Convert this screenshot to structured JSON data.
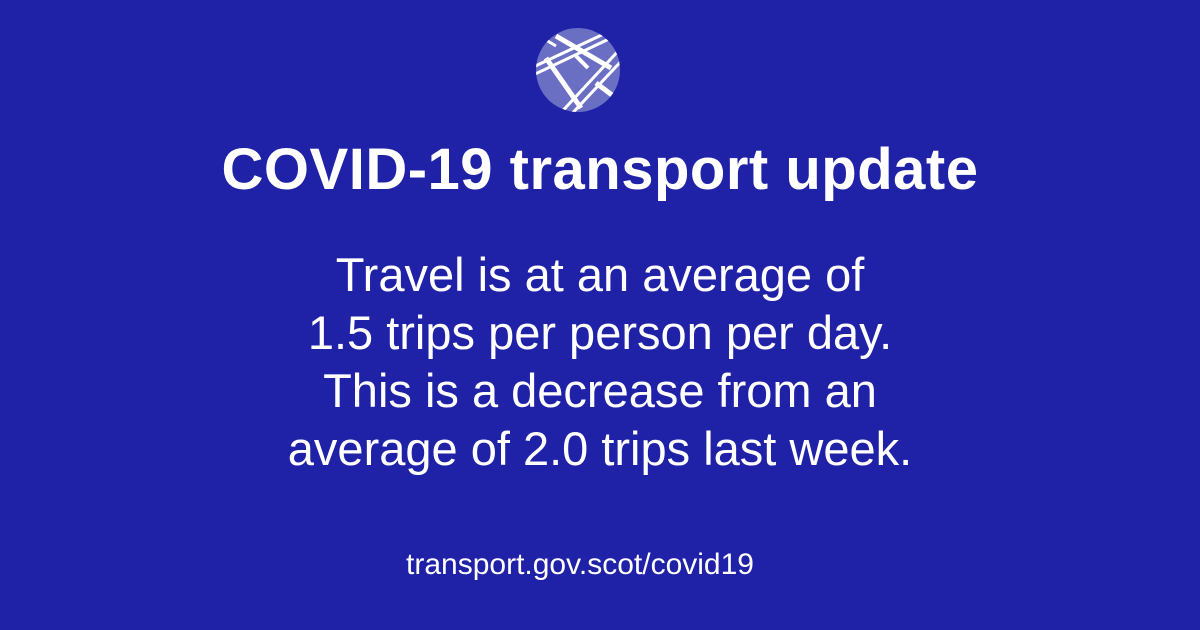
{
  "colors": {
    "background": "#1f22a6",
    "logo_circle": "#6a6fc4",
    "text": "#ffffff"
  },
  "logo": {
    "icon": "crossing-roads-globe-icon"
  },
  "title": "COVID-19 transport update",
  "message_lines": [
    "Travel is at an average of",
    "1.5 trips per person per day.",
    "This is a decrease from an",
    "average of 2.0 trips last week."
  ],
  "link": "transport.gov.scot/covid19"
}
